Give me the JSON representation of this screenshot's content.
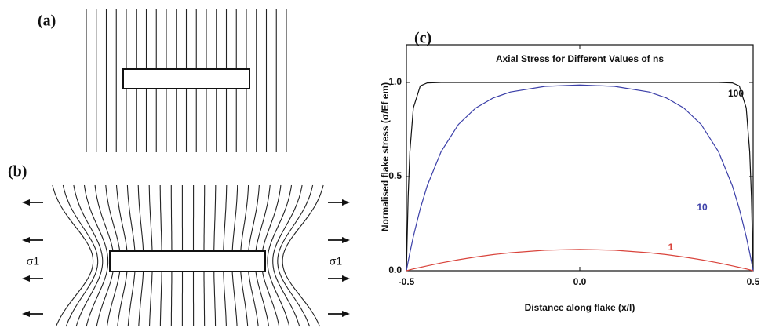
{
  "panels": {
    "a": {
      "label": "(a)"
    },
    "b": {
      "label": "(b)",
      "stress_left": "σ1",
      "stress_right": "σ1"
    }
  },
  "chart_data": {
    "type": "line",
    "panel_label": "(c)",
    "title": "Axial Stress for Different Values of ns",
    "x_label": "Distance along flake (x/l)",
    "y_label": "Normalised flake stress (σ/Ef em)",
    "x": [
      -0.5,
      -0.495,
      -0.49,
      -0.48,
      -0.46,
      -0.44,
      -0.4,
      -0.35,
      -0.3,
      -0.25,
      -0.2,
      -0.1,
      0,
      0.1,
      0.2,
      0.25,
      0.3,
      0.35,
      0.4,
      0.44,
      0.46,
      0.48,
      0.49,
      0.495,
      0.5
    ],
    "series": [
      {
        "name": "100",
        "color": "#111111",
        "values": [
          0,
          0.3935,
          0.6321,
          0.8647,
          0.9817,
          0.9975,
          1,
          1,
          1,
          1,
          1,
          1,
          1,
          1,
          1,
          1,
          1,
          1,
          1,
          0.9975,
          0.9817,
          0.8647,
          0.6321,
          0.3935,
          0
        ]
      },
      {
        "name": "10",
        "color": "#3b3fa8",
        "values": [
          0,
          0.0488,
          0.0953,
          0.1814,
          0.3296,
          0.4511,
          0.632,
          0.7767,
          0.8643,
          0.9174,
          0.9493,
          0.9792,
          0.9865,
          0.9792,
          0.9493,
          0.9174,
          0.8643,
          0.7767,
          0.632,
          0.4511,
          0.3296,
          0.1814,
          0.0953,
          0.0488,
          0
        ]
      },
      {
        "name": "1",
        "color": "#d9443c",
        "values": [
          0,
          0.0024,
          0.0048,
          0.0096,
          0.0177,
          0.0259,
          0.0413,
          0.0583,
          0.073,
          0.0853,
          0.0954,
          0.1088,
          0.1132,
          0.1088,
          0.0954,
          0.0853,
          0.073,
          0.0583,
          0.0413,
          0.0259,
          0.0177,
          0.0096,
          0.0048,
          0.0024,
          0
        ]
      }
    ],
    "xlim": [
      -0.5,
      0.5
    ],
    "xticks": [
      -0.5,
      {
        "value": 0,
        "label": "0.0"
      },
      0.5
    ],
    "ylim": [
      0,
      1.2
    ],
    "yticks": [
      {
        "value": 0,
        "label": "0.0"
      },
      0.5,
      {
        "value": 1,
        "label": "1.0"
      }
    ]
  }
}
